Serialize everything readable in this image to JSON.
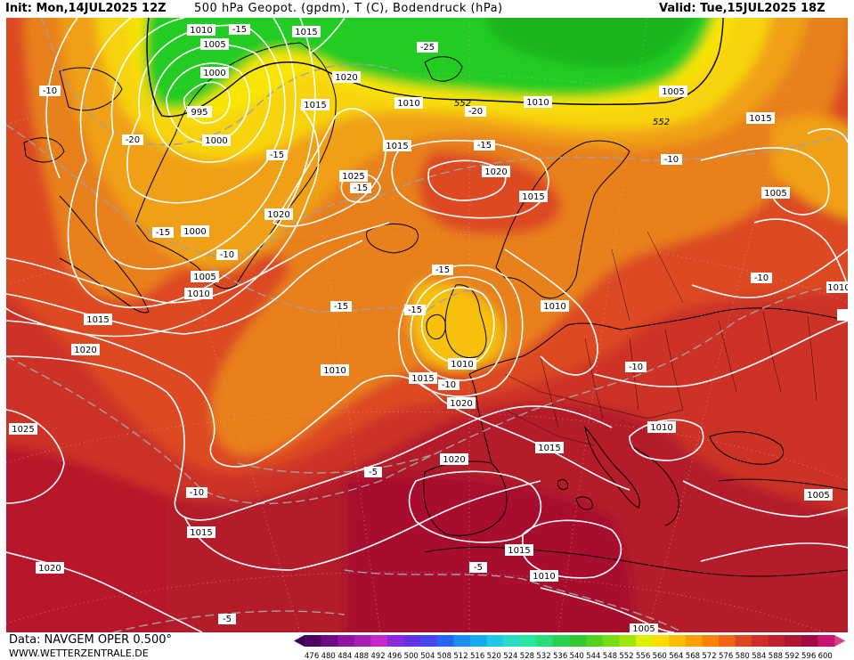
{
  "header": {
    "init": "Init: Mon,14JUL2025 12Z",
    "title": "500 hPa Geopot. (gpdm), T (C), Bodendruck (hPa)",
    "valid": "Valid: Tue,15JUL2025 18Z"
  },
  "footer": {
    "data": "Data: NAVGEM OPER 0.500°",
    "site": "WWW.WETTERZENTRALE.DE"
  },
  "colors": {
    "ocean_deep_red": "#a8102a",
    "dark_red": "#b8202a",
    "red": "#cc3326",
    "orange_red": "#dd5020",
    "orange": "#e8841a",
    "light_orange": "#f0a014",
    "yellow_orange": "#f6c00c",
    "yellow": "#fae600",
    "green": "#22cc22",
    "isobar": "#ffffff",
    "isotherm": "#a0a0a0",
    "coast": "#000000"
  },
  "legend": {
    "values": [
      "476",
      "480",
      "484",
      "488",
      "492",
      "496",
      "500",
      "504",
      "508",
      "512",
      "516",
      "520",
      "524",
      "528",
      "532",
      "536",
      "540",
      "544",
      "548",
      "552",
      "556",
      "560",
      "564",
      "568",
      "572",
      "576",
      "580",
      "584",
      "588",
      "592",
      "596",
      "600"
    ],
    "colors": [
      "#4b0064",
      "#6e0a82",
      "#8c14a0",
      "#a81eb4",
      "#c828c8",
      "#8c28dc",
      "#6432e6",
      "#4646f0",
      "#2864f5",
      "#1e8cf5",
      "#14aaf0",
      "#1ec8e6",
      "#28dcc8",
      "#28e6a0",
      "#28dc78",
      "#28d250",
      "#32c832",
      "#50d21e",
      "#78dc14",
      "#a0e60a",
      "#dcf000",
      "#ffdc00",
      "#ffbe00",
      "#ffa000",
      "#ff8200",
      "#f06414",
      "#e0461e",
      "#d02d28",
      "#c01e2d",
      "#b01432",
      "#a00a3c",
      "#c8146e"
    ]
  },
  "isobar_labels": [
    "1010",
    "1005",
    "1000",
    "995",
    "1000",
    "1015",
    "1020",
    "1015",
    "1010",
    "1010",
    "1015",
    "1020",
    "1025",
    "1020",
    "1000",
    "1005",
    "1010",
    "1015",
    "1020",
    "1025",
    "1020",
    "1015",
    "1010",
    "1005",
    "1015",
    "1010",
    "1015",
    "1010",
    "1015",
    "1020",
    "1015",
    "1010",
    "1005",
    "1020",
    "1010",
    "1015",
    "1010",
    "1005",
    "1005",
    "1010",
    "1000",
    "1005",
    "1015",
    "1020",
    "1010"
  ],
  "isotherm_labels": [
    "-15",
    "-25",
    "-20",
    "-10",
    "-20",
    "-15",
    "-15",
    "-15",
    "-15",
    "-10",
    "-15",
    "-15",
    "-15",
    "-10",
    "-10",
    "-10",
    "-10",
    "-5",
    "-10",
    "-5",
    "-5"
  ],
  "geopotential_labels": [
    "552",
    "552"
  ]
}
